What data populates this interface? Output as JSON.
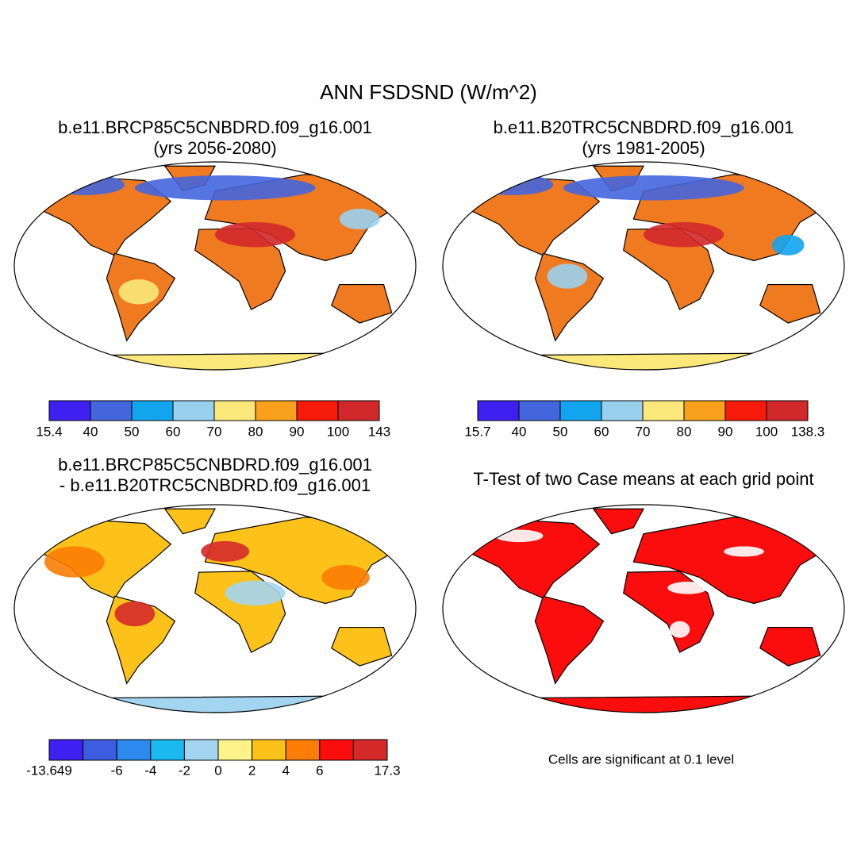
{
  "title": "ANN FSDSND (W/m^2)",
  "panels": [
    {
      "title_lines": [
        "b.e11.BRCP85C5CNBDRD.f09_g16.001",
        "(yrs 2056-2080)"
      ],
      "colorbar": {
        "colors": [
          "#4020f0",
          "#4466dd",
          "#11a5ee",
          "#99d0ee",
          "#fbe87a",
          "#f9a11c",
          "#f51a0a",
          "#d1282a"
        ],
        "labels": [
          "15.4",
          "40",
          "50",
          "60",
          "70",
          "80",
          "90",
          "100",
          "143"
        ]
      }
    },
    {
      "title_lines": [
        "b.e11.B20TRC5CNBDRD.f09_g16.001",
        "(yrs 1981-2005)"
      ],
      "colorbar": {
        "colors": [
          "#4020f0",
          "#4466dd",
          "#11a5ee",
          "#99d0ee",
          "#fbe87a",
          "#f9a11c",
          "#f51a0a",
          "#d1282a"
        ],
        "labels": [
          "15.7",
          "40",
          "50",
          "60",
          "70",
          "80",
          "90",
          "100",
          "138.3"
        ]
      }
    },
    {
      "title_lines": [
        "b.e11.BRCP85C5CNBDRD.f09_g16.001",
        "- b.e11.B20TRC5CNBDRD.f09_g16.001"
      ],
      "colorbar": {
        "colors": [
          "#4020f0",
          "#3d5de0",
          "#2c89ee",
          "#1ab9f0",
          "#a4d5f0",
          "#fdf38a",
          "#fdc21a",
          "#fb7d05",
          "#fb0d0d",
          "#d42a2a"
        ],
        "labels": [
          "-13.649",
          null,
          "-6",
          "-4",
          "-2",
          "0",
          "2",
          "4",
          "6",
          null,
          "17.3"
        ]
      }
    },
    {
      "title_lines": [
        "T-Test of two Case means at each grid point"
      ],
      "note": "Cells are significant at 0.1 level"
    }
  ]
}
